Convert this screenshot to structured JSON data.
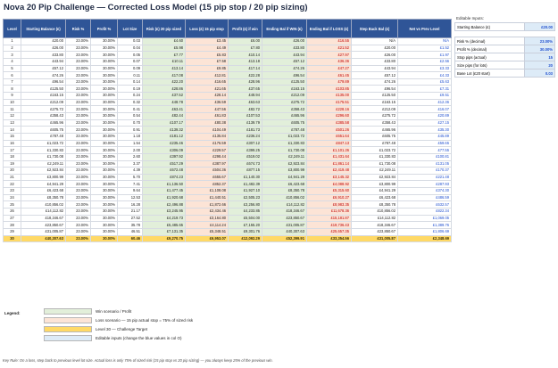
{
  "title": "Nova 20 Pip Challenge — Corrected Loss Model (15 pip stop / 20 pip sizing)",
  "headers": [
    "Level",
    "Starting Balance (£)",
    "Risk %",
    "Profit %",
    "Lot Size",
    "Risk (£) 20 pip sized",
    "Loss (£) 15 pip stop",
    "Profit (£) if win",
    "Ending Bal if WIN (£)",
    "Ending Bal if LOSS (£)",
    "Step Back Bal (£)",
    "Net vs Prev Level"
  ],
  "rows": [
    [
      "1",
      "£20.00",
      "23.00%",
      "30.00%",
      "0.03",
      "£4.60",
      "£3.45",
      "£6.00",
      "£26.00",
      "£16.55",
      "N/A",
      "N/A"
    ],
    [
      "2",
      "£26.00",
      "23.00%",
      "30.00%",
      "0.04",
      "£5.98",
      "£4.49",
      "£7.80",
      "£33.80",
      "£21.52",
      "£20.00",
      "£1.52"
    ],
    [
      "3",
      "£33.80",
      "23.00%",
      "30.00%",
      "0.05",
      "£7.77",
      "£5.83",
      "£10.14",
      "£43.94",
      "£27.97",
      "£26.00",
      "£1.97"
    ],
    [
      "4",
      "£43.94",
      "23.00%",
      "30.00%",
      "0.07",
      "£10.11",
      "£7.58",
      "£13.18",
      "£57.12",
      "£36.36",
      "£33.80",
      "£2.56"
    ],
    [
      "5",
      "£57.12",
      "23.00%",
      "30.00%",
      "0.09",
      "£13.14",
      "£9.85",
      "£17.14",
      "£74.26",
      "£47.27",
      "£43.94",
      "£3.33"
    ],
    [
      "6",
      "£74.26",
      "23.00%",
      "30.00%",
      "0.11",
      "£17.08",
      "£12.81",
      "£22.28",
      "£96.54",
      "£61.45",
      "£57.12",
      "£4.33"
    ],
    [
      "7",
      "£96.54",
      "23.00%",
      "30.00%",
      "0.14",
      "£22.20",
      "£16.65",
      "£28.96",
      "£125.50",
      "£79.89",
      "£74.26",
      "£5.63"
    ],
    [
      "8",
      "£125.50",
      "23.00%",
      "30.00%",
      "0.19",
      "£28.86",
      "£21.65",
      "£37.65",
      "£163.15",
      "£103.85",
      "£96.54",
      "£7.31"
    ],
    [
      "9",
      "£163.15",
      "23.00%",
      "30.00%",
      "0.24",
      "£37.52",
      "£28.14",
      "£48.94",
      "£212.09",
      "£135.00",
      "£125.50",
      "£9.51"
    ],
    [
      "10",
      "£212.09",
      "23.00%",
      "30.00%",
      "0.32",
      "£48.78",
      "£36.59",
      "£63.63",
      "£275.72",
      "£175.51",
      "£163.15",
      "£12.36"
    ],
    [
      "11",
      "£275.72",
      "23.00%",
      "30.00%",
      "0.41",
      "£63.41",
      "£47.56",
      "£82.72",
      "£358.43",
      "£228.16",
      "£212.09",
      "£16.07"
    ],
    [
      "12",
      "£358.43",
      "23.00%",
      "30.00%",
      "0.54",
      "£82.44",
      "£61.83",
      "£107.53",
      "£465.96",
      "£296.60",
      "£275.72",
      "£20.89"
    ],
    [
      "13",
      "£465.96",
      "23.00%",
      "30.00%",
      "0.70",
      "£107.17",
      "£80.38",
      "£139.79",
      "£605.75",
      "£385.58",
      "£358.43",
      "£27.15"
    ],
    [
      "14",
      "£605.75",
      "23.00%",
      "30.00%",
      "0.91",
      "£139.32",
      "£104.49",
      "£181.73",
      "£787.48",
      "£501.26",
      "£465.96",
      "£35.30"
    ],
    [
      "15",
      "£787.48",
      "23.00%",
      "30.00%",
      "1.18",
      "£181.12",
      "£135.84",
      "£236.24",
      "£1,023.72",
      "£651.64",
      "£605.75",
      "£45.89"
    ],
    [
      "16",
      "£1,023.72",
      "23.00%",
      "30.00%",
      "1.54",
      "£235.46",
      "£176.59",
      "£307.12",
      "£1,330.83",
      "£847.13",
      "£787.48",
      "£59.65"
    ],
    [
      "17",
      "£1,330.83",
      "23.00%",
      "30.00%",
      "2.00",
      "£306.09",
      "£229.57",
      "£399.25",
      "£1,730.08",
      "£1,101.26",
      "£1,023.72",
      "£77.55"
    ],
    [
      "18",
      "£1,730.08",
      "23.00%",
      "30.00%",
      "2.60",
      "£397.92",
      "£298.44",
      "£519.02",
      "£2,249.11",
      "£1,431.64",
      "£1,330.83",
      "£100.81"
    ],
    [
      "19",
      "£2,249.11",
      "23.00%",
      "30.00%",
      "3.37",
      "£517.29",
      "£387.97",
      "£674.73",
      "£2,923.84",
      "£1,861.14",
      "£1,730.08",
      "£131.05"
    ],
    [
      "20",
      "£2,923.84",
      "23.00%",
      "30.00%",
      "4.39",
      "£672.48",
      "£504.36",
      "£877.15",
      "£3,800.99",
      "£2,419.48",
      "£2,249.11",
      "£170.37"
    ],
    [
      "21",
      "£3,800.99",
      "23.00%",
      "30.00%",
      "5.70",
      "£874.23",
      "£655.67",
      "£1,140.30",
      "£4,941.29",
      "£3,145.32",
      "£2,923.84",
      "£221.48"
    ],
    [
      "22",
      "£4,941.29",
      "23.00%",
      "30.00%",
      "7.41",
      "£1,136.50",
      "£852.37",
      "£1,482.39",
      "£6,423.68",
      "£4,088.92",
      "£3,800.99",
      "£287.93"
    ],
    [
      "23",
      "£6,423.68",
      "23.00%",
      "30.00%",
      "9.64",
      "£1,477.45",
      "£1,108.08",
      "£1,927.10",
      "£8,350.78",
      "£5,315.60",
      "£4,941.29",
      "£374.30"
    ],
    [
      "24",
      "£8,350.78",
      "23.00%",
      "30.00%",
      "12.53",
      "£1,920.68",
      "£1,440.51",
      "£2,505.23",
      "£10,856.02",
      "£6,910.27",
      "£6,423.68",
      "£486.59"
    ],
    [
      "25",
      "£10,856.02",
      "23.00%",
      "30.00%",
      "16.28",
      "£2,496.88",
      "£1,872.66",
      "£3,256.80",
      "£14,112.82",
      "£8,983.35",
      "£8,350.78",
      "£632.57"
    ],
    [
      "26",
      "£14,112.82",
      "23.00%",
      "30.00%",
      "21.17",
      "£3,245.95",
      "£2,434.46",
      "£4,233.85",
      "£18,346.67",
      "£11,678.36",
      "£10,856.02",
      "£822.34"
    ],
    [
      "27",
      "£18,346.67",
      "23.00%",
      "30.00%",
      "27.52",
      "£4,219.73",
      "£3,164.80",
      "£5,504.00",
      "£23,850.67",
      "£15,181.87",
      "£14,112.82",
      "£1,069.05"
    ],
    [
      "28",
      "£23,850.67",
      "23.00%",
      "30.00%",
      "35.78",
      "£5,485.65",
      "£4,114.24",
      "£7,155.20",
      "£31,005.87",
      "£19,736.43",
      "£18,346.67",
      "£1,389.76"
    ],
    [
      "29",
      "£31,005.87",
      "23.00%",
      "30.00%",
      "46.51",
      "£7,131.35",
      "£5,348.51",
      "£9,301.76",
      "£40,307.63",
      "£25,657.35",
      "£23,850.67",
      "£1,806.69"
    ],
    [
      "30",
      "£40,307.63",
      "23.00%",
      "30.00%",
      "60.46",
      "£9,270.75",
      "£6,953.07",
      "£12,092.29",
      "£52,399.91",
      "£33,354.56",
      "£31,005.87",
      "£2,348.69"
    ]
  ],
  "inputs": {
    "heading": "Editable Inputs:",
    "items": [
      {
        "label": "Starting Balance (£)",
        "value": "£20.00"
      },
      {
        "label": "Risk % (decimal)",
        "value": "23.00%"
      },
      {
        "label": "Profit % (decimal)",
        "value": "30.00%"
      },
      {
        "label": "Stop pips (actual)",
        "value": "15"
      },
      {
        "label": "Size pips (for lots)",
        "value": "20"
      },
      {
        "label": "Base Lot (£20 start)",
        "value": "0.03"
      }
    ]
  },
  "legend": {
    "title": "Legend:",
    "items": [
      {
        "color": "#e2efda",
        "text": "Win scenario / Profit"
      },
      {
        "color": "#fce4d6",
        "text": "Loss scenario — 15 pip actual stop = 75% of sized risk"
      },
      {
        "color": "#ffd966",
        "text": "Level 30 — Challenge Target"
      },
      {
        "color": "#ddebf7",
        "text": "Editable inputs (change the blue values in col O)"
      }
    ]
  },
  "key_rule": "Key Rule: On a loss, step back to previous level lot size. Actual loss is only 75% of sized risk (15 pip stop vs 20 pip sizing) — you always keep 25% of the previous win.",
  "colors": {
    "header": "#2f5597",
    "win": "#e2efda",
    "loss": "#fce4d6",
    "target": "#ffd966",
    "input": "#ddebf7",
    "blue_text": "#1f4fcf",
    "red_text": "#c00000"
  }
}
